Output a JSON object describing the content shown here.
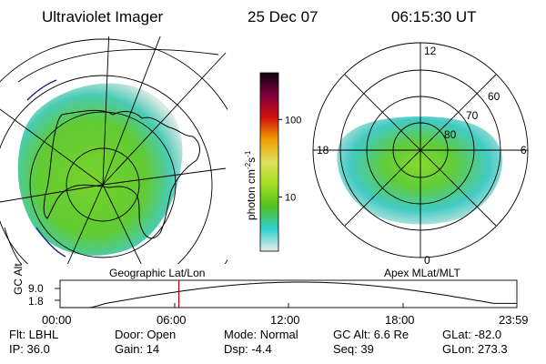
{
  "header": {
    "instrument": "Ultraviolet Imager",
    "date": "25 Dec 07",
    "time": "06:15:30 UT"
  },
  "colorbar": {
    "unit_prefix": "photon cm",
    "unit_exp1": "-2",
    "unit_mid": "s",
    "unit_exp2": "-1",
    "ticks": [
      "100",
      "10"
    ],
    "tick_values": [
      100,
      10
    ],
    "colors": [
      "#e8ecea",
      "#30d0d0",
      "#50c020",
      "#a0e020",
      "#e0e060",
      "#f0a000",
      "#d01010",
      "#800040",
      "#100010"
    ]
  },
  "left_panel": {
    "caption": "Geographic Lat/Lon"
  },
  "right_panel": {
    "caption": "Apex MLat/MLT",
    "lat_labels": [
      "60",
      "70",
      "80"
    ],
    "mlt_labels": [
      "12",
      "18",
      "6",
      "0"
    ]
  },
  "altitude_plot": {
    "y_label": "GC Alt",
    "y_ticks": [
      "9.0",
      "1.8"
    ],
    "x_ticks": [
      "00:00",
      "06:00",
      "12:00",
      "18:00",
      "23:59"
    ],
    "current_time_fraction": 0.26,
    "marker_color": "#c00000"
  },
  "info": {
    "row1": [
      {
        "label": "Flt:",
        "value": "LBHL"
      },
      {
        "label": "Door:",
        "value": "Open"
      },
      {
        "label": "Mode:",
        "value": "Normal"
      },
      {
        "label": "GC Alt:",
        "value": "6.6 Re"
      },
      {
        "label": "GLat:",
        "value": "-82.0"
      }
    ],
    "row2": [
      {
        "label": "IP:",
        "value": "36.0"
      },
      {
        "label": "Gain:",
        "value": "14"
      },
      {
        "label": "Dsp:",
        "value": "-4.4"
      },
      {
        "label": "Seq:",
        "value": "39"
      },
      {
        "label": "GLon:",
        "value": "273.3"
      }
    ]
  }
}
